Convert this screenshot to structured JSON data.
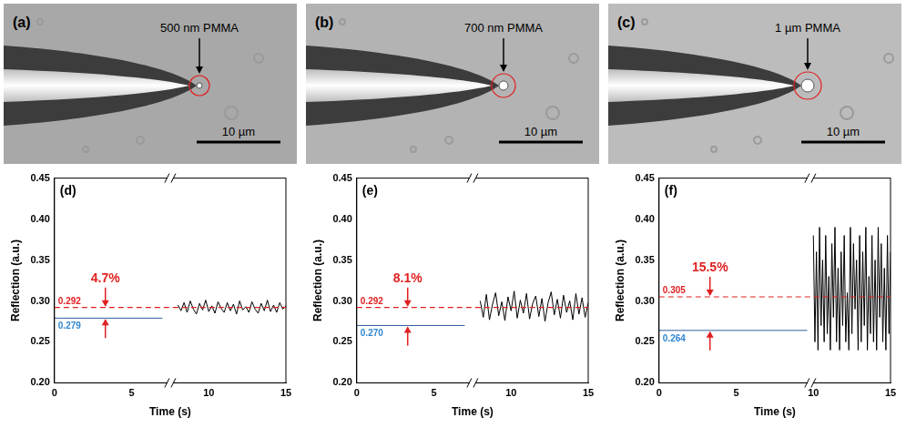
{
  "micrographs": [
    {
      "panel": "(a)",
      "label": "500 nm PMMA",
      "scale_bar": "10 µm"
    },
    {
      "panel": "(b)",
      "label": "700 nm PMMA",
      "scale_bar": "10 µm"
    },
    {
      "panel": "(c)",
      "label": "1 µm PMMA",
      "scale_bar": "10 µm"
    }
  ],
  "chart_data": [
    {
      "panel": "(d)",
      "type": "line",
      "x_label": "Time (s)",
      "y_label": "Reflection (a.u.)",
      "xlim": [
        0,
        15
      ],
      "xticks": [
        0,
        5,
        10,
        15
      ],
      "ylim": [
        0.2,
        0.45
      ],
      "yticks": [
        {
          "value": 0.2,
          "label": "0.20"
        },
        0.25,
        {
          "value": 0.3,
          "label": "0.30"
        },
        0.35,
        {
          "value": 0.4,
          "label": "0.40"
        },
        0.45
      ],
      "grid": false,
      "markers": [
        {
          "value": 0.292,
          "label": "0.292",
          "color": "#e02020",
          "line_style": "dashed"
        },
        {
          "value": 0.279,
          "label": "0.279",
          "color": "#2f86d0"
        }
      ],
      "change": {
        "text": "4.7%",
        "color": "#e02020"
      },
      "series": [
        {
          "color": "#2f5f9f",
          "x": [
            0,
            7
          ],
          "values": [
            0.279,
            0.279
          ]
        },
        {
          "color": "#000000",
          "x": [
            8,
            8.2,
            8.4,
            8.6,
            8.8,
            9,
            9.2,
            9.4,
            9.6,
            9.8,
            10,
            10.2,
            10.4,
            10.6,
            10.8,
            11,
            11.2,
            11.4,
            11.6,
            11.8,
            12,
            12.2,
            12.4,
            12.6,
            12.8,
            13,
            13.2,
            13.4,
            13.6,
            13.8,
            14,
            14.2,
            14.4,
            14.6,
            14.8,
            15
          ],
          "values": [
            0.295,
            0.288,
            0.298,
            0.286,
            0.3,
            0.29,
            0.284,
            0.297,
            0.289,
            0.301,
            0.287,
            0.294,
            0.285,
            0.299,
            0.291,
            0.286,
            0.298,
            0.288,
            0.296,
            0.284,
            0.3,
            0.289,
            0.293,
            0.286,
            0.299,
            0.29,
            0.285,
            0.297,
            0.288,
            0.301,
            0.287,
            0.295,
            0.286,
            0.298,
            0.29,
            0.294
          ]
        }
      ]
    },
    {
      "panel": "(e)",
      "type": "line",
      "x_label": "Time (s)",
      "y_label": "Reflection (a.u.)",
      "xlim": [
        0,
        15
      ],
      "xticks": [
        0,
        5,
        10,
        15
      ],
      "ylim": [
        0.2,
        0.45
      ],
      "yticks": [
        {
          "value": 0.2,
          "label": "0.20"
        },
        0.25,
        {
          "value": 0.3,
          "label": "0.30"
        },
        0.35,
        {
          "value": 0.4,
          "label": "0.40"
        },
        0.45
      ],
      "grid": false,
      "markers": [
        {
          "value": 0.292,
          "label": "0.292",
          "color": "#e02020",
          "line_style": "dashed"
        },
        {
          "value": 0.27,
          "label": "0.270",
          "color": "#2f86d0"
        }
      ],
      "change": {
        "text": "8.1%",
        "color": "#e02020"
      },
      "series": [
        {
          "color": "#2f5f9f",
          "x": [
            0,
            7
          ],
          "values": [
            0.27,
            0.27
          ]
        },
        {
          "color": "#000000",
          "x": [
            8,
            8.2,
            8.4,
            8.6,
            8.8,
            9,
            9.2,
            9.4,
            9.6,
            9.8,
            10,
            10.2,
            10.4,
            10.6,
            10.8,
            11,
            11.2,
            11.4,
            11.6,
            11.8,
            12,
            12.2,
            12.4,
            12.6,
            12.8,
            13,
            13.2,
            13.4,
            13.6,
            13.8,
            14,
            14.2,
            14.4,
            14.6,
            14.8,
            15
          ],
          "values": [
            0.3,
            0.28,
            0.308,
            0.277,
            0.296,
            0.31,
            0.282,
            0.299,
            0.276,
            0.305,
            0.288,
            0.312,
            0.279,
            0.301,
            0.285,
            0.309,
            0.278,
            0.297,
            0.306,
            0.281,
            0.303,
            0.275,
            0.298,
            0.311,
            0.283,
            0.302,
            0.279,
            0.307,
            0.286,
            0.3,
            0.277,
            0.309,
            0.284,
            0.304,
            0.28,
            0.298
          ]
        }
      ]
    },
    {
      "panel": "(f)",
      "type": "line",
      "x_label": "Time (s)",
      "y_label": "Reflection (a.u.)",
      "xlim": [
        0,
        15
      ],
      "xticks": [
        0,
        5,
        10,
        15
      ],
      "ylim": [
        0.2,
        0.45
      ],
      "yticks": [
        {
          "value": 0.2,
          "label": "0.20"
        },
        0.25,
        {
          "value": 0.3,
          "label": "0.30"
        },
        0.35,
        {
          "value": 0.4,
          "label": "0.40"
        },
        0.45
      ],
      "grid": false,
      "markers": [
        {
          "value": 0.305,
          "label": "0.305",
          "color": "#e02020",
          "line_style": "dashed"
        },
        {
          "value": 0.264,
          "label": "0.264",
          "color": "#2f86d0"
        }
      ],
      "change": {
        "text": "15.5%",
        "color": "#e02020"
      },
      "series": [
        {
          "color": "#2f5f9f",
          "x": [
            0,
            9.6
          ],
          "values": [
            0.264,
            0.264
          ]
        },
        {
          "color": "#000000",
          "x": [
            10,
            10.1,
            10.2,
            10.3,
            10.4,
            10.5,
            10.6,
            10.7,
            10.8,
            10.9,
            11,
            11.1,
            11.2,
            11.3,
            11.4,
            11.5,
            11.6,
            11.7,
            11.8,
            11.9,
            12,
            12.1,
            12.2,
            12.3,
            12.4,
            12.5,
            12.6,
            12.7,
            12.8,
            12.9,
            13,
            13.1,
            13.2,
            13.3,
            13.4,
            13.5,
            13.6,
            13.7,
            13.8,
            13.9,
            14,
            14.1,
            14.2,
            14.3,
            14.4,
            14.5,
            14.6,
            14.7,
            14.8,
            14.9,
            15
          ],
          "values": [
            0.38,
            0.25,
            0.36,
            0.24,
            0.39,
            0.27,
            0.35,
            0.25,
            0.38,
            0.26,
            0.33,
            0.24,
            0.37,
            0.28,
            0.39,
            0.25,
            0.34,
            0.24,
            0.36,
            0.27,
            0.38,
            0.25,
            0.31,
            0.24,
            0.39,
            0.26,
            0.37,
            0.29,
            0.35,
            0.24,
            0.38,
            0.25,
            0.36,
            0.27,
            0.39,
            0.24,
            0.33,
            0.26,
            0.38,
            0.25,
            0.35,
            0.24,
            0.39,
            0.28,
            0.37,
            0.25,
            0.34,
            0.24,
            0.38,
            0.26,
            0.36
          ]
        }
      ]
    }
  ]
}
